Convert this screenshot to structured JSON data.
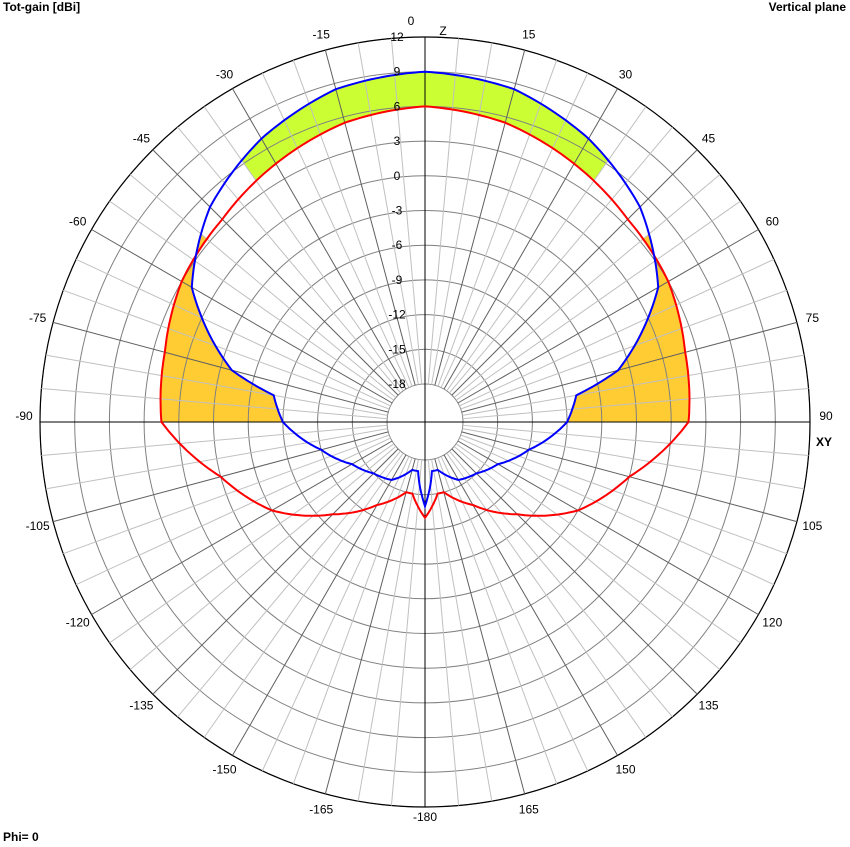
{
  "header": {
    "title_left": "Tot-gain [dBi]",
    "title_right": "Vertical plane"
  },
  "footer": {
    "phi_label": "Phi= 0"
  },
  "chart_data": {
    "type": "polar",
    "radial_axis": {
      "range": [
        -18,
        12
      ],
      "step": 3,
      "tick_labels": [
        "12",
        "9",
        "6",
        "3",
        "0",
        "-3",
        "-6",
        "-9",
        "-12",
        "-15",
        "-18"
      ]
    },
    "angle_axis": {
      "direction": "clockwise",
      "zero": "top",
      "step": 15,
      "tick_labels": [
        "0",
        "15",
        "30",
        "45",
        "60",
        "75",
        "90",
        "105",
        "120",
        "135",
        "150",
        "165",
        "-180",
        "-165",
        "-150",
        "-135",
        "-120",
        "-105",
        "-90",
        "-75",
        "-60",
        "-45",
        "-30",
        "-15"
      ],
      "axis_names": {
        "vertical": "Z",
        "horizontal": "XY"
      }
    },
    "grid": true,
    "colors": {
      "series_blue": "#0000ff",
      "series_red": "#ff0000",
      "fill_green": "#ccff33",
      "fill_orange": "#ffcc33",
      "grid": "#808080"
    },
    "series": [
      {
        "color": "blue",
        "theta": [
          0,
          15,
          30,
          45,
          60,
          75,
          80,
          90,
          105,
          120,
          135,
          150,
          165,
          172,
          180
        ],
        "gain": [
          9,
          8.5,
          7,
          5,
          2,
          -4,
          -8,
          -9,
          -12,
          -14,
          -15,
          -15.5,
          -17,
          -17,
          -14
        ]
      },
      {
        "color": "red",
        "theta": [
          0,
          15,
          30,
          45,
          60,
          75,
          90,
          105,
          120,
          135,
          150,
          165,
          170,
          180
        ],
        "gain": [
          6,
          5.5,
          4.5,
          3.5,
          3,
          2,
          1.5,
          -3,
          -6,
          -10,
          -13,
          -15,
          -15,
          -13
        ]
      }
    ],
    "shading": [
      {
        "color": "green",
        "where": "blue above red",
        "theta_range": [
          -35,
          35
        ]
      },
      {
        "color": "orange",
        "where": "red above blue",
        "theta_range": [
          50,
          90
        ]
      }
    ]
  }
}
